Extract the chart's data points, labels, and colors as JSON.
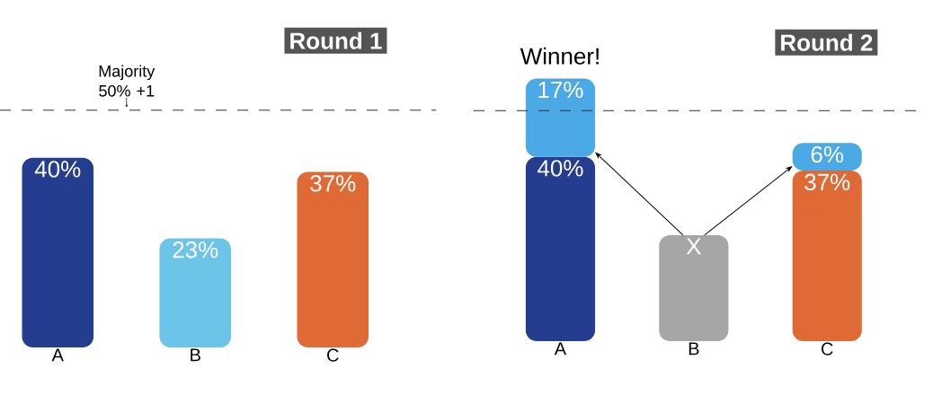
{
  "chart_data": [
    {
      "type": "bar",
      "title": "Round 1",
      "categories": [
        "A",
        "B",
        "C"
      ],
      "values": [
        40,
        23,
        37
      ],
      "colors": [
        "#253d8f",
        "#6cc5e8",
        "#e06a35"
      ],
      "value_labels": [
        "40%",
        "23%",
        "37%"
      ],
      "tick_labels": "x",
      "ref_lines": [
        {
          "axis": "y",
          "value": 50,
          "label": "Majority 50% +1",
          "line_style": "dashed",
          "color": "#333333"
        }
      ]
    },
    {
      "type": "bar",
      "title": "Round 2",
      "categories": [
        "A",
        "B",
        "C"
      ],
      "stacked": true,
      "tick_labels": "x",
      "series": [
        {
          "colors": [
            "#253d8f",
            "#a6a6a6",
            "#e06a35"
          ],
          "values": [
            40,
            23,
            37
          ],
          "value_labels": [
            "40%",
            "X",
            "37%"
          ]
        },
        {
          "color": "#4ba9e6",
          "values": [
            17,
            null,
            6
          ],
          "value_labels": [
            "17%",
            null,
            "6%"
          ]
        }
      ],
      "annotations": [
        {
          "text": "Winner!",
          "x": "A",
          "y": 57
        }
      ],
      "ref_lines": [
        {
          "axis": "y",
          "value": 50,
          "line_style": "dashed",
          "color": "#333333"
        }
      ]
    }
  ]
}
